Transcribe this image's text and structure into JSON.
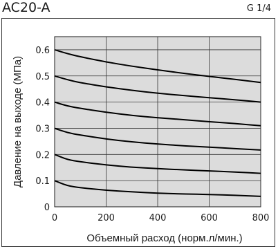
{
  "header": {
    "model": "AC20-A",
    "port": "G 1/4"
  },
  "chart_data": {
    "type": "line",
    "xlabel": "Объемный расход (норм.л/мин.)",
    "ylabel": "Давление на выходе (МПа)",
    "xlim": [
      0,
      800
    ],
    "ylim": [
      0,
      0.65
    ],
    "xticks": [
      "0",
      "200",
      "400",
      "600",
      "800"
    ],
    "yticks": [
      "0",
      "0.1",
      "0.2",
      "0.3",
      "0.4",
      "0.5",
      "0.6"
    ],
    "grid": true,
    "series": [
      {
        "x": [
          0,
          50,
          100,
          200,
          300,
          400,
          500,
          600,
          700,
          800
        ],
        "y": [
          0.6,
          0.585,
          0.573,
          0.553,
          0.537,
          0.523,
          0.51,
          0.498,
          0.487,
          0.475
        ]
      },
      {
        "x": [
          0,
          50,
          100,
          200,
          300,
          400,
          500,
          600,
          700,
          800
        ],
        "y": [
          0.5,
          0.485,
          0.474,
          0.458,
          0.445,
          0.434,
          0.425,
          0.417,
          0.409,
          0.4
        ]
      },
      {
        "x": [
          0,
          50,
          100,
          200,
          300,
          400,
          500,
          600,
          700,
          800
        ],
        "y": [
          0.4,
          0.385,
          0.376,
          0.361,
          0.349,
          0.34,
          0.333,
          0.325,
          0.318,
          0.31
        ]
      },
      {
        "x": [
          0,
          50,
          100,
          200,
          300,
          400,
          500,
          600,
          700,
          800
        ],
        "y": [
          0.3,
          0.283,
          0.274,
          0.259,
          0.248,
          0.24,
          0.233,
          0.228,
          0.222,
          0.217
        ]
      },
      {
        "x": [
          0,
          50,
          100,
          200,
          300,
          400,
          500,
          600,
          700,
          800
        ],
        "y": [
          0.2,
          0.18,
          0.172,
          0.16,
          0.151,
          0.146,
          0.141,
          0.137,
          0.133,
          0.128
        ]
      },
      {
        "x": [
          0,
          50,
          100,
          200,
          300,
          400,
          500,
          600,
          700,
          800
        ],
        "y": [
          0.1,
          0.08,
          0.073,
          0.063,
          0.057,
          0.052,
          0.049,
          0.047,
          0.044,
          0.04
        ]
      }
    ]
  }
}
